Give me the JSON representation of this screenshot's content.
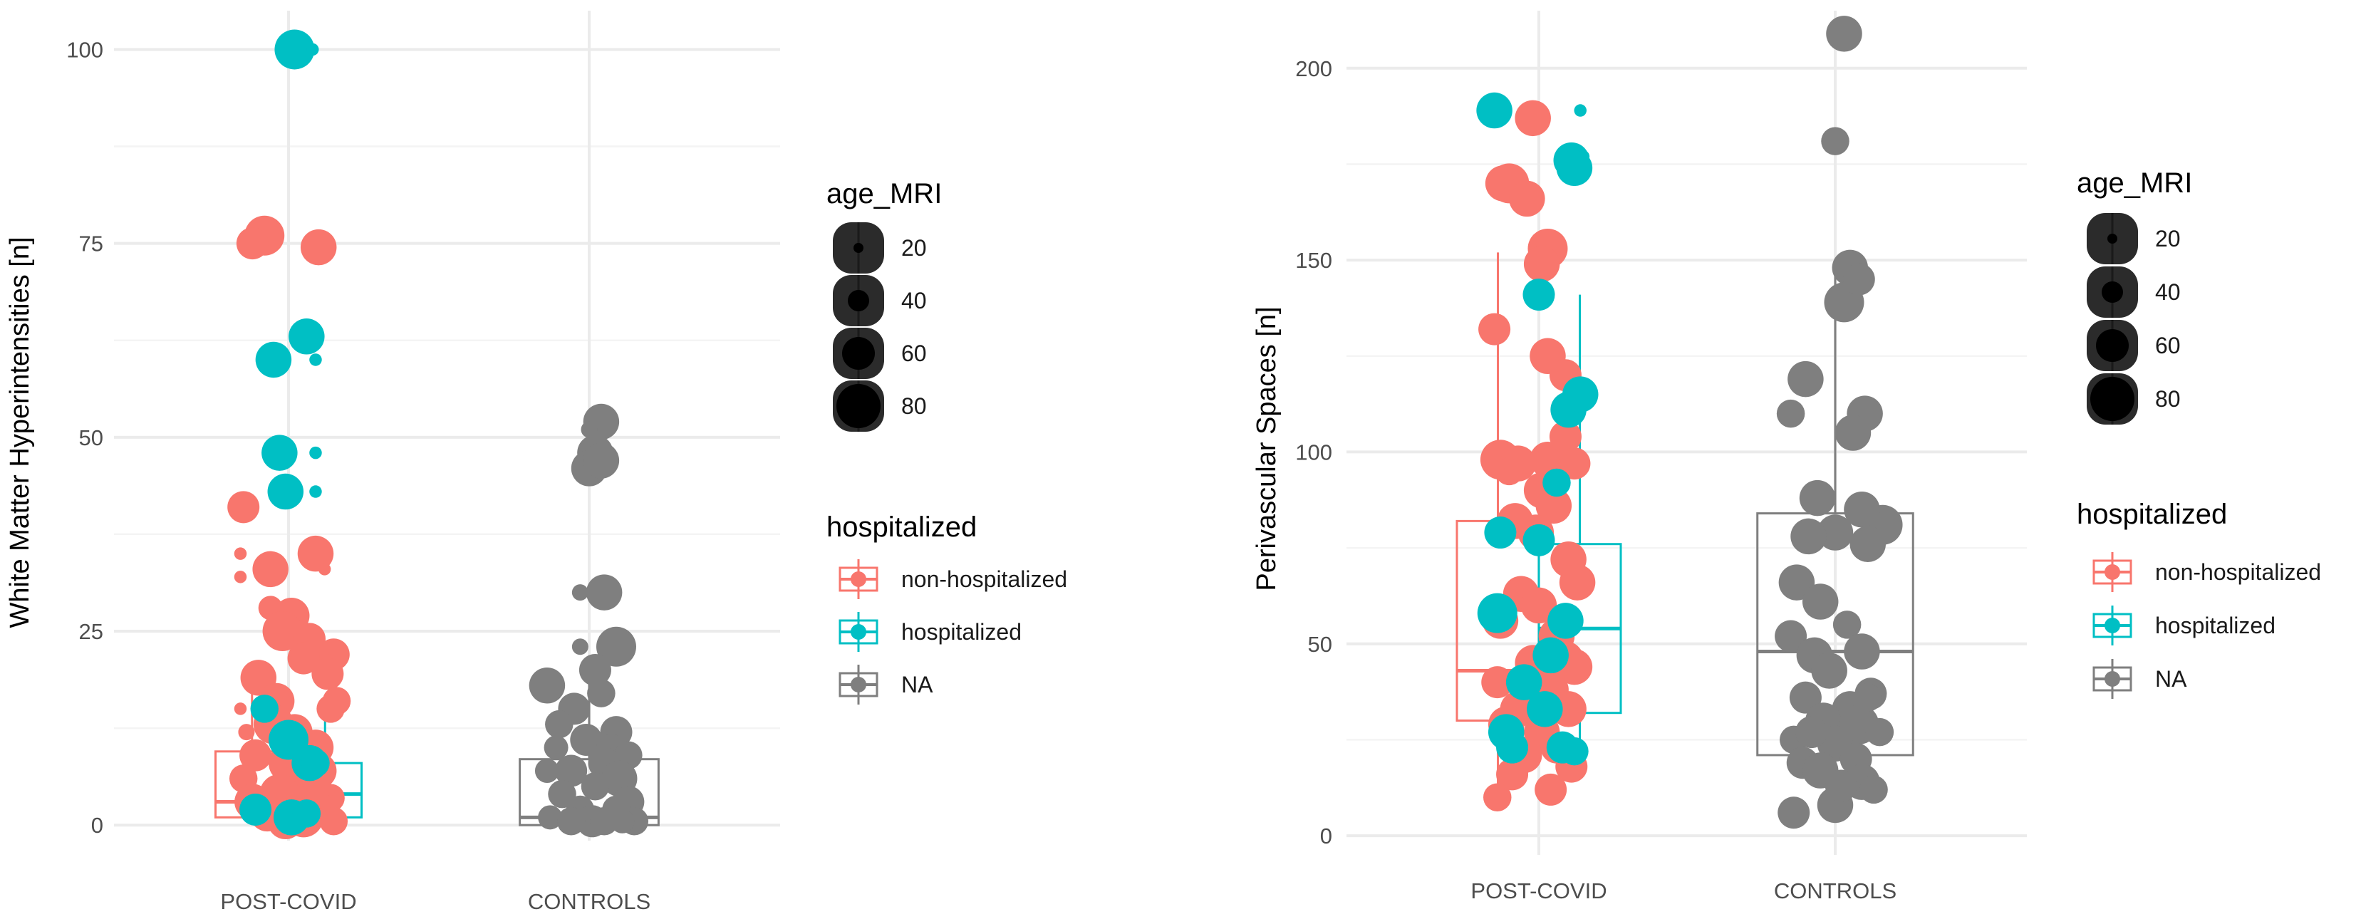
{
  "chart_data": [
    {
      "type": "box+jitter",
      "ylabel": "White Matter Hyperintensities [n]",
      "xlabel": "",
      "categories": [
        "POST-COVID",
        "CONTROLS"
      ],
      "ylim": [
        -2,
        105
      ],
      "yticks": [
        0,
        25,
        50,
        75,
        100
      ],
      "grid": true,
      "boxes": [
        {
          "category": "POST-COVID",
          "group": "non-hospitalized",
          "q1": 1,
          "median": 3,
          "q3": 9.5,
          "whisker_low": 0,
          "whisker_high": 21
        },
        {
          "category": "POST-COVID",
          "group": "hospitalized",
          "q1": 1,
          "median": 4,
          "q3": 8,
          "whisker_low": 0,
          "whisker_high": 15
        },
        {
          "category": "CONTROLS",
          "group": "NA",
          "q1": 0,
          "median": 1,
          "q3": 8.5,
          "whisker_low": 0,
          "whisker_high": 20
        }
      ],
      "points": {
        "non-hospitalized": [
          [
            -0.08,
            76,
            60
          ],
          [
            -0.12,
            75,
            50
          ],
          [
            0.1,
            74.5,
            55
          ],
          [
            -0.15,
            41,
            50
          ],
          [
            -0.06,
            33,
            55
          ],
          [
            -0.16,
            35,
            25
          ],
          [
            -0.16,
            32,
            25
          ],
          [
            -0.06,
            28,
            40
          ],
          [
            0.01,
            27,
            55
          ],
          [
            -0.02,
            25,
            60
          ],
          [
            0.07,
            24,
            50
          ],
          [
            0.15,
            22,
            50
          ],
          [
            0.05,
            21.5,
            50
          ],
          [
            0.13,
            21,
            30
          ],
          [
            0.13,
            19.5,
            50
          ],
          [
            -0.1,
            19,
            55
          ],
          [
            0.16,
            16,
            45
          ],
          [
            -0.04,
            16,
            55
          ],
          [
            0.14,
            15,
            45
          ],
          [
            -0.16,
            15,
            25
          ],
          [
            -0.05,
            13,
            60
          ],
          [
            0.02,
            12,
            55
          ],
          [
            -0.14,
            12,
            30
          ],
          [
            0.09,
            10,
            55
          ],
          [
            -0.11,
            9,
            50
          ],
          [
            0.0,
            8,
            60
          ],
          [
            0.1,
            7,
            55
          ],
          [
            -0.15,
            6,
            45
          ],
          [
            0.06,
            5,
            60
          ],
          [
            -0.03,
            4,
            60
          ],
          [
            0.14,
            3.5,
            45
          ],
          [
            -0.12,
            3,
            55
          ],
          [
            0.03,
            2.5,
            60
          ],
          [
            0.11,
            2,
            50
          ],
          [
            -0.07,
            1.5,
            55
          ],
          [
            0.05,
            1,
            60
          ],
          [
            -0.01,
            0.5,
            55
          ],
          [
            0.15,
            0.5,
            45
          ],
          [
            0.09,
            35,
            55
          ],
          [
            0.12,
            33,
            25
          ]
        ],
        "hospitalized": [
          [
            0.02,
            100,
            60
          ],
          [
            0.08,
            100,
            25
          ],
          [
            -0.05,
            60,
            55
          ],
          [
            0.06,
            63,
            55
          ],
          [
            0.09,
            60,
            25
          ],
          [
            -0.03,
            48,
            55
          ],
          [
            0.09,
            48,
            25
          ],
          [
            -0.01,
            43,
            55
          ],
          [
            0.09,
            43,
            25
          ],
          [
            -0.08,
            15,
            45
          ],
          [
            0.0,
            11,
            60
          ],
          [
            0.07,
            8,
            55
          ],
          [
            0.09,
            8,
            45
          ],
          [
            -0.11,
            2,
            50
          ],
          [
            0.01,
            1,
            55
          ],
          [
            0.06,
            1.5,
            45
          ]
        ],
        "NA": [
          [
            0.04,
            52,
            55
          ],
          [
            0.0,
            51,
            30
          ],
          [
            0.02,
            48,
            55
          ],
          [
            0.0,
            46,
            55
          ],
          [
            0.04,
            47,
            55
          ],
          [
            0.05,
            30,
            55
          ],
          [
            -0.03,
            30,
            30
          ],
          [
            -0.03,
            23,
            30
          ],
          [
            0.09,
            23,
            60
          ],
          [
            0.02,
            20,
            50
          ],
          [
            -0.14,
            18,
            55
          ],
          [
            0.04,
            17,
            45
          ],
          [
            -0.05,
            15,
            50
          ],
          [
            -0.1,
            13,
            45
          ],
          [
            0.09,
            12,
            50
          ],
          [
            -0.01,
            11,
            50
          ],
          [
            0.07,
            10,
            45
          ],
          [
            -0.11,
            10,
            40
          ],
          [
            0.13,
            9,
            45
          ],
          [
            0.05,
            8,
            50
          ],
          [
            -0.06,
            7,
            50
          ],
          [
            -0.14,
            7,
            40
          ],
          [
            0.1,
            6,
            55
          ],
          [
            0.02,
            5,
            45
          ],
          [
            -0.09,
            4,
            45
          ],
          [
            0.13,
            3,
            50
          ],
          [
            -0.03,
            2,
            45
          ],
          [
            0.09,
            2,
            45
          ],
          [
            -0.13,
            1,
            40
          ],
          [
            0.01,
            0.5,
            50
          ],
          [
            0.15,
            0.5,
            45
          ],
          [
            -0.06,
            0.5,
            45
          ],
          [
            0.11,
            0.5,
            40
          ],
          [
            0.05,
            0.5,
            45
          ]
        ]
      }
    },
    {
      "type": "box+jitter",
      "ylabel": "Perivascular Spaces [n]",
      "xlabel": "",
      "categories": [
        "POST-COVID",
        "CONTROLS"
      ],
      "ylim": [
        -5,
        215
      ],
      "yticks": [
        0,
        50,
        100,
        150,
        200
      ],
      "grid": true,
      "boxes": [
        {
          "category": "POST-COVID",
          "group": "non-hospitalized",
          "q1": 30,
          "median": 43,
          "q3": 82,
          "whisker_low": 10,
          "whisker_high": 152
        },
        {
          "category": "POST-COVID",
          "group": "hospitalized",
          "q1": 32,
          "median": 54,
          "q3": 76,
          "whisker_low": 20,
          "whisker_high": 141
        },
        {
          "category": "CONTROLS",
          "group": "NA",
          "q1": 21,
          "median": 48,
          "q3": 84,
          "whisker_low": 5,
          "whisker_high": 147
        }
      ],
      "points": {
        "non-hospitalized": [
          [
            -0.02,
            187,
            55
          ],
          [
            -0.12,
            170,
            55
          ],
          [
            -0.1,
            170,
            60
          ],
          [
            -0.04,
            166,
            55
          ],
          [
            0.03,
            153,
            60
          ],
          [
            0.01,
            149,
            55
          ],
          [
            0.03,
            125,
            55
          ],
          [
            0.09,
            120,
            50
          ],
          [
            -0.15,
            132,
            50
          ],
          [
            -0.13,
            98,
            60
          ],
          [
            -0.07,
            97,
            55
          ],
          [
            0.03,
            98,
            55
          ],
          [
            -0.1,
            95,
            45
          ],
          [
            0.09,
            104,
            50
          ],
          [
            0.12,
            97,
            50
          ],
          [
            0.01,
            90,
            55
          ],
          [
            0.05,
            86,
            55
          ],
          [
            -0.08,
            82,
            55
          ],
          [
            -0.01,
            79,
            55
          ],
          [
            0.1,
            72,
            55
          ],
          [
            0.13,
            66,
            55
          ],
          [
            -0.06,
            63,
            55
          ],
          [
            0.0,
            60,
            55
          ],
          [
            -0.13,
            56,
            55
          ],
          [
            0.06,
            52,
            55
          ],
          [
            0.09,
            46,
            55
          ],
          [
            -0.02,
            45,
            55
          ],
          [
            0.12,
            44,
            55
          ],
          [
            -0.14,
            40,
            50
          ],
          [
            0.04,
            38,
            55
          ],
          [
            -0.07,
            33,
            55
          ],
          [
            0.1,
            33,
            55
          ],
          [
            -0.11,
            29,
            55
          ],
          [
            0.01,
            27,
            55
          ],
          [
            0.06,
            23,
            50
          ],
          [
            -0.05,
            21,
            55
          ],
          [
            0.11,
            18,
            50
          ],
          [
            -0.09,
            16,
            50
          ],
          [
            0.04,
            12,
            50
          ],
          [
            -0.14,
            10,
            45
          ]
        ],
        "hospitalized": [
          [
            -0.15,
            189,
            55
          ],
          [
            0.14,
            189,
            25
          ],
          [
            0.11,
            176,
            55
          ],
          [
            0.12,
            174,
            55
          ],
          [
            0.15,
            177,
            25
          ],
          [
            0.0,
            141,
            50
          ],
          [
            0.1,
            111,
            55
          ],
          [
            0.14,
            115,
            55
          ],
          [
            0.06,
            92,
            45
          ],
          [
            0.0,
            77,
            50
          ],
          [
            -0.13,
            79,
            50
          ],
          [
            -0.14,
            58,
            60
          ],
          [
            0.09,
            56,
            55
          ],
          [
            0.04,
            47,
            55
          ],
          [
            -0.05,
            40,
            55
          ],
          [
            0.02,
            33,
            55
          ],
          [
            -0.11,
            27,
            55
          ],
          [
            0.08,
            23,
            50
          ],
          [
            0.12,
            22,
            45
          ],
          [
            -0.09,
            23,
            50
          ]
        ],
        "NA": [
          [
            0.03,
            209,
            55
          ],
          [
            0.0,
            181,
            45
          ],
          [
            0.05,
            148,
            55
          ],
          [
            0.03,
            139,
            60
          ],
          [
            0.08,
            145,
            50
          ],
          [
            -0.1,
            119,
            55
          ],
          [
            -0.15,
            110,
            45
          ],
          [
            0.1,
            110,
            55
          ],
          [
            0.06,
            105,
            55
          ],
          [
            -0.06,
            88,
            55
          ],
          [
            0.16,
            81,
            60
          ],
          [
            0.09,
            85,
            55
          ],
          [
            0.0,
            79,
            55
          ],
          [
            -0.09,
            78,
            55
          ],
          [
            0.11,
            76,
            55
          ],
          [
            -0.13,
            66,
            55
          ],
          [
            -0.05,
            61,
            55
          ],
          [
            0.04,
            55,
            45
          ],
          [
            -0.15,
            52,
            50
          ],
          [
            -0.07,
            47,
            55
          ],
          [
            0.09,
            48,
            55
          ],
          [
            -0.02,
            43,
            55
          ],
          [
            0.12,
            37,
            50
          ],
          [
            -0.1,
            36,
            50
          ],
          [
            0.05,
            33,
            55
          ],
          [
            -0.04,
            30,
            55
          ],
          [
            0.08,
            29,
            60
          ],
          [
            0.15,
            27,
            45
          ],
          [
            -0.14,
            25,
            45
          ],
          [
            0.0,
            24,
            55
          ],
          [
            0.07,
            20,
            50
          ],
          [
            -0.11,
            19,
            50
          ],
          [
            -0.05,
            17,
            55
          ],
          [
            0.09,
            14,
            55
          ],
          [
            0.13,
            12,
            45
          ],
          [
            -0.14,
            6,
            50
          ],
          [
            0.0,
            8,
            55
          ],
          [
            0.02,
            13,
            50
          ],
          [
            -0.08,
            27,
            50
          ],
          [
            0.11,
            36,
            45
          ]
        ]
      }
    }
  ],
  "legend": {
    "size_title": "age_MRI",
    "size_labels": [
      "20",
      "40",
      "60",
      "80"
    ],
    "color_title": "hospitalized",
    "groups": [
      {
        "label": "non-hospitalized",
        "color": "#F8766D"
      },
      {
        "label": "hospitalized",
        "color": "#00BFC4"
      },
      {
        "label": "NA",
        "color": "#7F7F7F"
      }
    ]
  }
}
